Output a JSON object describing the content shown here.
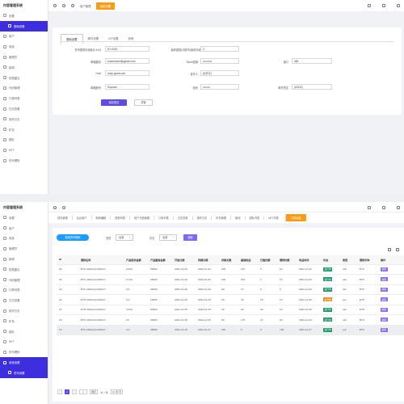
{
  "app": {
    "title": "内容管理系统"
  },
  "panel1": {
    "sidebar": [
      "设置",
      "基础设置",
      "用户",
      "商品",
      "管理员",
      "新闻",
      "权限建议",
      "代码管理",
      "订单列表",
      "日志查看",
      "操作日志",
      "矿机",
      "团队",
      "NFT",
      "货币理财"
    ],
    "tabs": [
      "用户管理",
      "系统设置"
    ],
    "form_tabs": [
      "基础设置",
      "邮件设置",
      "ICP设置",
      "其他"
    ],
    "fields": {
      "fee_label": "货币提现手续费(0-100)",
      "fee_value": "$ 0.0001",
      "minwithdraw_label": "最低提现(冲提币)最低手续费率",
      "minwithdraw_value": "2",
      "email_label": "邮箱服务",
      "email_value": "brazemeset@gmail.com",
      "key_label": "Token密钥",
      "key_value": "••••••••••",
      "port_label": "端口",
      "port_value": "465",
      "host_label": "Host",
      "host_value": "smtp.gmail.com",
      "user_label": "发件人",
      "user_value": "[USDZ]",
      "username_label": "邮箱账号",
      "username_value": "Enpuser",
      "password_label": "密码",
      "password_value": "••••••••",
      "sender_label": "邮件签名",
      "sender_value": "[USDZ]"
    },
    "buttons": {
      "save": "保存提交",
      "reset": "重置"
    }
  },
  "panel2": {
    "sidebar": [
      "设置",
      "用户",
      "商品",
      "管理员",
      "新闻",
      "权限建议",
      "代码管理",
      "订单列表",
      "日志查看",
      "操作日志",
      "矿机",
      "团队",
      "NFT",
      "货币理财",
      "系统设置",
      "货币设置"
    ],
    "tags": [
      "首页管理",
      "后台用户",
      "新闻编辑",
      "提现列表",
      "用户充值管理",
      "订单列表",
      "日志查看",
      "操作日志",
      "矿机管理",
      "新闻",
      "团队列表",
      "NFT列表",
      "订单设置"
    ],
    "toolbar": {
      "add": "新增货币理财",
      "type_label": "类型",
      "type_value": "全部",
      "state_label": "状态",
      "state_value": "全部",
      "search": "搜索"
    },
    "columns": [
      "ID",
      "理财名称",
      "产品起存金额",
      "产品最高金额",
      "开始日期",
      "到期日期",
      "存款天数",
      "基础收益",
      "已售份额",
      "理财份额",
      "收益时间",
      "状态",
      "类型",
      "理财币种",
      "操作"
    ],
    "rows": [
      [
        "26",
        "BTC-2022(12)-0000-C",
        "10.00",
        "50000",
        "2021-12-29",
        "2022-12-31",
        "200",
        "197",
        "3",
        "10",
        "2021-12-29",
        "运行中",
        "call",
        "BTC",
        "编辑"
      ],
      [
        "24",
        "BTC-2022(12)-0000-C",
        "17.00",
        "30000",
        "2021-12-29",
        "2022-01-01",
        "100",
        "697",
        "1",
        "10",
        "2021-12-29",
        "运行中",
        "call",
        "BTC",
        "编辑"
      ],
      [
        "23",
        "BTC-2022(12)-0000-P",
        "0.0",
        "30000",
        "2021-12-29",
        "2022-12-29",
        "20",
        "47",
        "0",
        "5",
        "2021-12-29",
        "运行中",
        "put",
        "BTC",
        "编辑"
      ],
      [
        "22",
        "ETH-2022(12)-0000-P",
        "0.0",
        "10000",
        "2021-12-25",
        "2022-12-25",
        "30",
        "40",
        "15",
        "10",
        "2021-12-25",
        "未开始",
        "put",
        "ETH",
        "编辑"
      ],
      [
        "21",
        "ETH-2022(12)-0000-C",
        "16.00",
        "80000",
        "2021-12-25",
        "2022-12-25",
        "40",
        "60",
        "30",
        "10",
        "2021-12-25",
        "运行中",
        "call",
        "ETH",
        "编辑"
      ],
      [
        "20",
        "BTC-2022(12)-0000-C",
        "15",
        "30000",
        "2021-12-25",
        "2022-12-25",
        "50",
        "175",
        "27",
        "20",
        "2021-12-25",
        "运行中",
        "call",
        "BTC",
        "编辑"
      ],
      [
        "19",
        "BTC-2022(12)-0000-P",
        "0.0",
        "30000",
        "2021-12-16",
        "2022-01-27",
        "200",
        "0",
        "0",
        "100",
        "2021-12-27",
        "运行中",
        "put",
        "BTC",
        "编辑"
      ]
    ],
    "pager": {
      "prev": "<",
      "page": "1",
      "next": ">",
      "goto": "确定",
      "total": "共 7 条",
      "size": "10 条/页"
    }
  },
  "colors": {
    "accent": "#5b4be7",
    "active_tab": "#fa9c14",
    "badge_green": "#1a9a66",
    "badge_orange": "#f08a1a"
  }
}
